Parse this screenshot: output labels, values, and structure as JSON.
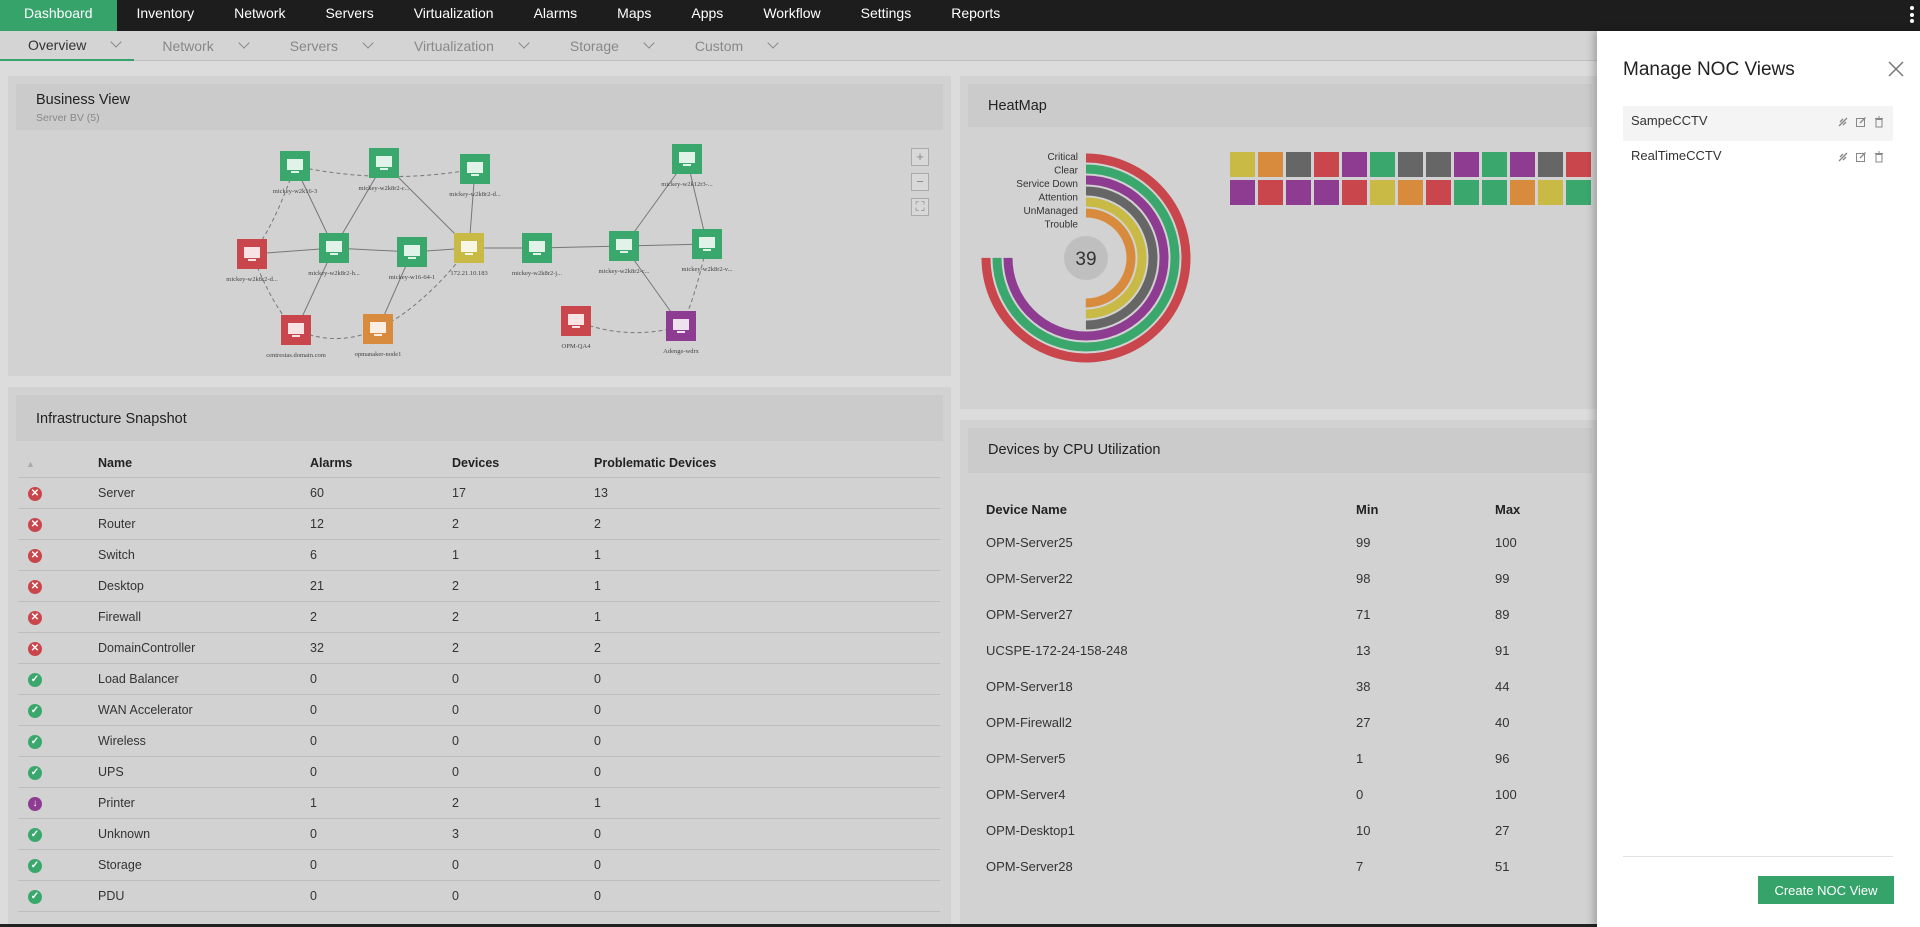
{
  "topnav": {
    "items": [
      "Dashboard",
      "Inventory",
      "Network",
      "Servers",
      "Virtualization",
      "Alarms",
      "Maps",
      "Apps",
      "Workflow",
      "Settings",
      "Reports"
    ]
  },
  "subnav": {
    "items": [
      "Overview",
      "Network",
      "Servers",
      "Virtualization",
      "Storage",
      "Custom"
    ]
  },
  "business_view": {
    "title": "Business View",
    "subtitle": "Server BV (5)",
    "nodes": [
      {
        "label": "mickey-w2k16-3",
        "color": "#3aa86d",
        "icon": "phone-icon"
      },
      {
        "label": "mickey-w2k8r2-c...",
        "color": "#3aa86d",
        "icon": "monitor-icon"
      },
      {
        "label": "mickey-w2k8r2-d...",
        "color": "#3aa86d",
        "icon": "monitor-icon"
      },
      {
        "label": "mickey-w2k12r3-...",
        "color": "#3aa86d",
        "icon": "monitor-icon"
      },
      {
        "label": "mickey-w2k8r2-d...",
        "color": "#c9464c",
        "icon": "windows-icon"
      },
      {
        "label": "mickey-w2k8r2-h...",
        "color": "#3aa86d",
        "icon": "phone-icon"
      },
      {
        "label": "mickey-w16-64-1",
        "color": "#3aa86d",
        "icon": "windows-icon"
      },
      {
        "label": "172.21.10.183",
        "color": "#c9b945",
        "icon": "router-icon"
      },
      {
        "label": "mickey-w2k8r2-j...",
        "color": "#3aa86d",
        "icon": "windows-icon"
      },
      {
        "label": "mickey-w2k8r2-c...",
        "color": "#3aa86d",
        "icon": "phone-icon"
      },
      {
        "label": "mickey-w2k8r2-v...",
        "color": "#3aa86d",
        "icon": "monitor-icon"
      },
      {
        "label": "centrestas.domain.com",
        "color": "#c9464c",
        "icon": "windows-icon"
      },
      {
        "label": "opmanaker-node1",
        "color": "#d98b3d",
        "icon": "monitor-icon"
      },
      {
        "label": "OPM-QA4",
        "color": "#c9464c",
        "icon": "monitor-icon"
      },
      {
        "label": "Adenge-wdrx",
        "color": "#8e3c92",
        "icon": "monitor-icon"
      }
    ]
  },
  "heatmap": {
    "title": "HeatMap",
    "center_value": "39",
    "legend": [
      "Critical",
      "Clear",
      "Service Down",
      "Attention",
      "UnManaged",
      "Trouble"
    ],
    "legend_colors": [
      "#c9464c",
      "#3aa86d",
      "#8e3c92",
      "#666666",
      "#c9b945",
      "#d98b3d"
    ],
    "ring_fractions": [
      0.75,
      0.75,
      0.75,
      0.5,
      0.5,
      0.5
    ],
    "row1_colors": [
      "#c9b945",
      "#d98b3d",
      "#666666",
      "#c9464c",
      "#8e3c92",
      "#3aa86d",
      "#666666",
      "#666666",
      "#8e3c92",
      "#3aa86d",
      "#8e3c92",
      "#666666",
      "#c9464c"
    ],
    "row2_colors": [
      "#8e3c92",
      "#c9464c",
      "#8e3c92",
      "#8e3c92",
      "#c9464c",
      "#c9b945",
      "#d98b3d",
      "#c9464c",
      "#3aa86d",
      "#3aa86d",
      "#d98b3d",
      "#c9b945",
      "#3aa86d"
    ]
  },
  "infra": {
    "title": "Infrastructure Snapshot",
    "columns": [
      "Name",
      "Alarms",
      "Devices",
      "Problematic Devices"
    ],
    "rows": [
      {
        "status": "critical",
        "name": "Server",
        "alarms": "60",
        "devices": "17",
        "problematic": "13"
      },
      {
        "status": "critical",
        "name": "Router",
        "alarms": "12",
        "devices": "2",
        "problematic": "2"
      },
      {
        "status": "critical",
        "name": "Switch",
        "alarms": "6",
        "devices": "1",
        "problematic": "1"
      },
      {
        "status": "critical",
        "name": "Desktop",
        "alarms": "21",
        "devices": "2",
        "problematic": "1"
      },
      {
        "status": "critical",
        "name": "Firewall",
        "alarms": "2",
        "devices": "2",
        "problematic": "1"
      },
      {
        "status": "critical",
        "name": "DomainController",
        "alarms": "32",
        "devices": "2",
        "problematic": "2"
      },
      {
        "status": "clear",
        "name": "Load Balancer",
        "alarms": "0",
        "devices": "0",
        "problematic": "0"
      },
      {
        "status": "clear",
        "name": "WAN Accelerator",
        "alarms": "0",
        "devices": "0",
        "problematic": "0"
      },
      {
        "status": "clear",
        "name": "Wireless",
        "alarms": "0",
        "devices": "0",
        "problematic": "0"
      },
      {
        "status": "clear",
        "name": "UPS",
        "alarms": "0",
        "devices": "0",
        "problematic": "0"
      },
      {
        "status": "service-down",
        "name": "Printer",
        "alarms": "1",
        "devices": "2",
        "problematic": "1"
      },
      {
        "status": "clear",
        "name": "Unknown",
        "alarms": "0",
        "devices": "3",
        "problematic": "0"
      },
      {
        "status": "clear",
        "name": "Storage",
        "alarms": "0",
        "devices": "0",
        "problematic": "0"
      },
      {
        "status": "clear",
        "name": "PDU",
        "alarms": "0",
        "devices": "0",
        "problematic": "0"
      }
    ]
  },
  "cpu": {
    "title": "Devices by CPU Utilization",
    "columns": [
      "Device Name",
      "Min",
      "Max"
    ],
    "rows": [
      {
        "name": "OPM-Server25",
        "min": "99",
        "max": "100"
      },
      {
        "name": "OPM-Server22",
        "min": "98",
        "max": "99"
      },
      {
        "name": "OPM-Server27",
        "min": "71",
        "max": "89"
      },
      {
        "name": "UCSPE-172-24-158-248",
        "min": "13",
        "max": "91"
      },
      {
        "name": "OPM-Server18",
        "min": "38",
        "max": "44"
      },
      {
        "name": "OPM-Firewall2",
        "min": "27",
        "max": "40"
      },
      {
        "name": "OPM-Server5",
        "min": "1",
        "max": "96"
      },
      {
        "name": "OPM-Server4",
        "min": "0",
        "max": "100"
      },
      {
        "name": "OPM-Desktop1",
        "min": "10",
        "max": "27"
      },
      {
        "name": "OPM-Server28",
        "min": "7",
        "max": "51"
      }
    ]
  },
  "drawer": {
    "title": "Manage NOC Views",
    "views": [
      "SampeCCTV",
      "RealTimeCCTV"
    ],
    "create_label": "Create NOC View"
  }
}
